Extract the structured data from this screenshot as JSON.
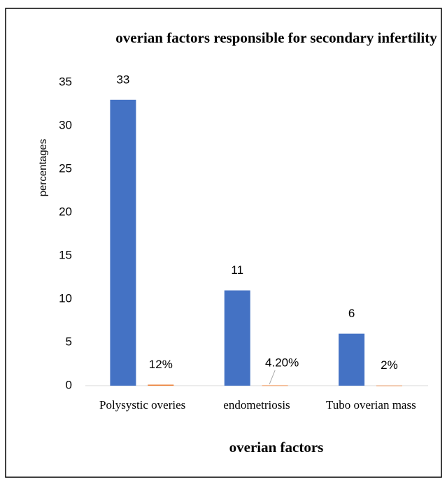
{
  "chart_data": {
    "type": "bar",
    "title": "overian factors responsible for secondary infertility",
    "x_label": "overian factors",
    "y_label": "percentages",
    "categories": [
      "Polysystic overies",
      "endometriosis",
      "Tubo overian mass"
    ],
    "series": [
      {
        "color": "#4472c4",
        "values": [
          33,
          11,
          6
        ]
      },
      {
        "color": "#ed7d31",
        "values": [
          0.12,
          0.042,
          0.02
        ],
        "value_labels": [
          "12%",
          "4.20%",
          "2%"
        ]
      }
    ],
    "ylim": [
      0,
      35
    ],
    "yticks": [
      0,
      5,
      10,
      15,
      20,
      25,
      30,
      35
    ],
    "grid": false
  }
}
